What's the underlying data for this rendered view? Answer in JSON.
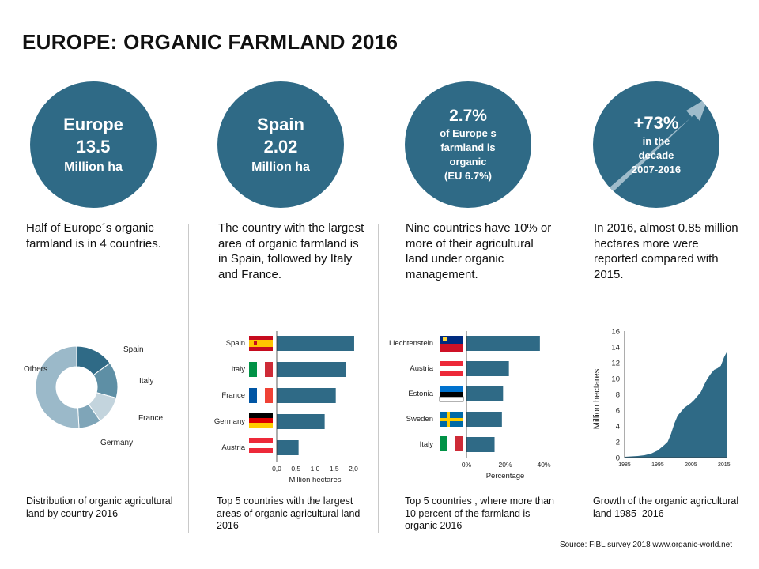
{
  "title": "EUROPE: ORGANIC FARMLAND 2016",
  "circles": [
    {
      "lines": [
        "Europe",
        "13.5",
        "Million ha"
      ]
    },
    {
      "lines": [
        "Spain",
        "2.02",
        "Million ha"
      ]
    },
    {
      "lines": [
        "2.7%",
        "of Europe s",
        "farmland is",
        "organic",
        "(EU 6.7%)"
      ]
    },
    {
      "lines": [
        "+73%",
        "in the",
        "decade",
        "2007-2016"
      ]
    }
  ],
  "descriptions": [
    "Half of Europe´s organic farmland is in 4 countries.",
    "The country with the largest area of organic farmland is in Spain, followed by Italy and France.",
    "Nine countries have 10% or more of their agricultural land under organic management.",
    "In 2016, almost 0.85 million hectares more were reported compared with 2015."
  ],
  "captions": [
    "Distribution of organic agricultural land by country 2016",
    "Top 5 countries with the largest areas of organic agricultural land 2016",
    "Top 5 countries , where more than 10  percent of the farmland is organic 2016",
    "Growth of the organic agricultural land 1985–2016"
  ],
  "source": "Source: FiBL survey 2018 www.organic-world.net",
  "colors": {
    "primary": "#2f6a86",
    "donut": [
      "#2f6a86",
      "#5e8fa5",
      "#c3d4dd",
      "#7fa5b8",
      "#9bb9c9"
    ]
  },
  "chart_data": [
    {
      "type": "pie",
      "variant": "donut",
      "categories": [
        "Spain",
        "Italy",
        "France",
        "Germany",
        "Others"
      ],
      "values": [
        15,
        14.2,
        11.1,
        8.8,
        50.9
      ]
    },
    {
      "type": "bar",
      "orientation": "horizontal",
      "categories": [
        "Spain",
        "Italy",
        "France",
        "Germany",
        "Austria"
      ],
      "values": [
        2.02,
        1.8,
        1.54,
        1.25,
        0.57
      ],
      "xlabel": "Million hectares",
      "xlim": [
        0,
        2.0
      ],
      "xticks": [
        "0,0",
        "0,5",
        "1,0",
        "1,5",
        "2,0"
      ]
    },
    {
      "type": "bar",
      "orientation": "horizontal",
      "categories": [
        "Liechtenstein",
        "Austria",
        "Estonia",
        "Sweden",
        "Italy"
      ],
      "values": [
        37.9,
        21.9,
        18.9,
        18.3,
        14.5
      ],
      "xlabel": "Percentage",
      "xlim": [
        0,
        40
      ],
      "xticks": [
        "0%",
        "20%",
        "40%"
      ]
    },
    {
      "type": "area",
      "x": [
        1985,
        1987,
        1989,
        1991,
        1993,
        1995,
        1997,
        1998,
        1999,
        2000,
        2001,
        2002,
        2003,
        2004,
        2005,
        2006,
        2007,
        2008,
        2009,
        2010,
        2011,
        2012,
        2013,
        2014,
        2015,
        2016
      ],
      "y": [
        0.1,
        0.15,
        0.2,
        0.3,
        0.5,
        0.9,
        1.6,
        2.0,
        3.0,
        4.3,
        5.3,
        5.8,
        6.3,
        6.6,
        6.9,
        7.3,
        7.8,
        8.3,
        9.2,
        10.0,
        10.6,
        11.1,
        11.3,
        11.6,
        12.7,
        13.5
      ],
      "ylabel": "Million hectares",
      "ylim": [
        0,
        16
      ],
      "yticks": [
        "0",
        "2",
        "4",
        "6",
        "8",
        "10",
        "12",
        "14",
        "16"
      ],
      "xticks": [
        "1985",
        "1995",
        "2005",
        "2015"
      ]
    }
  ]
}
